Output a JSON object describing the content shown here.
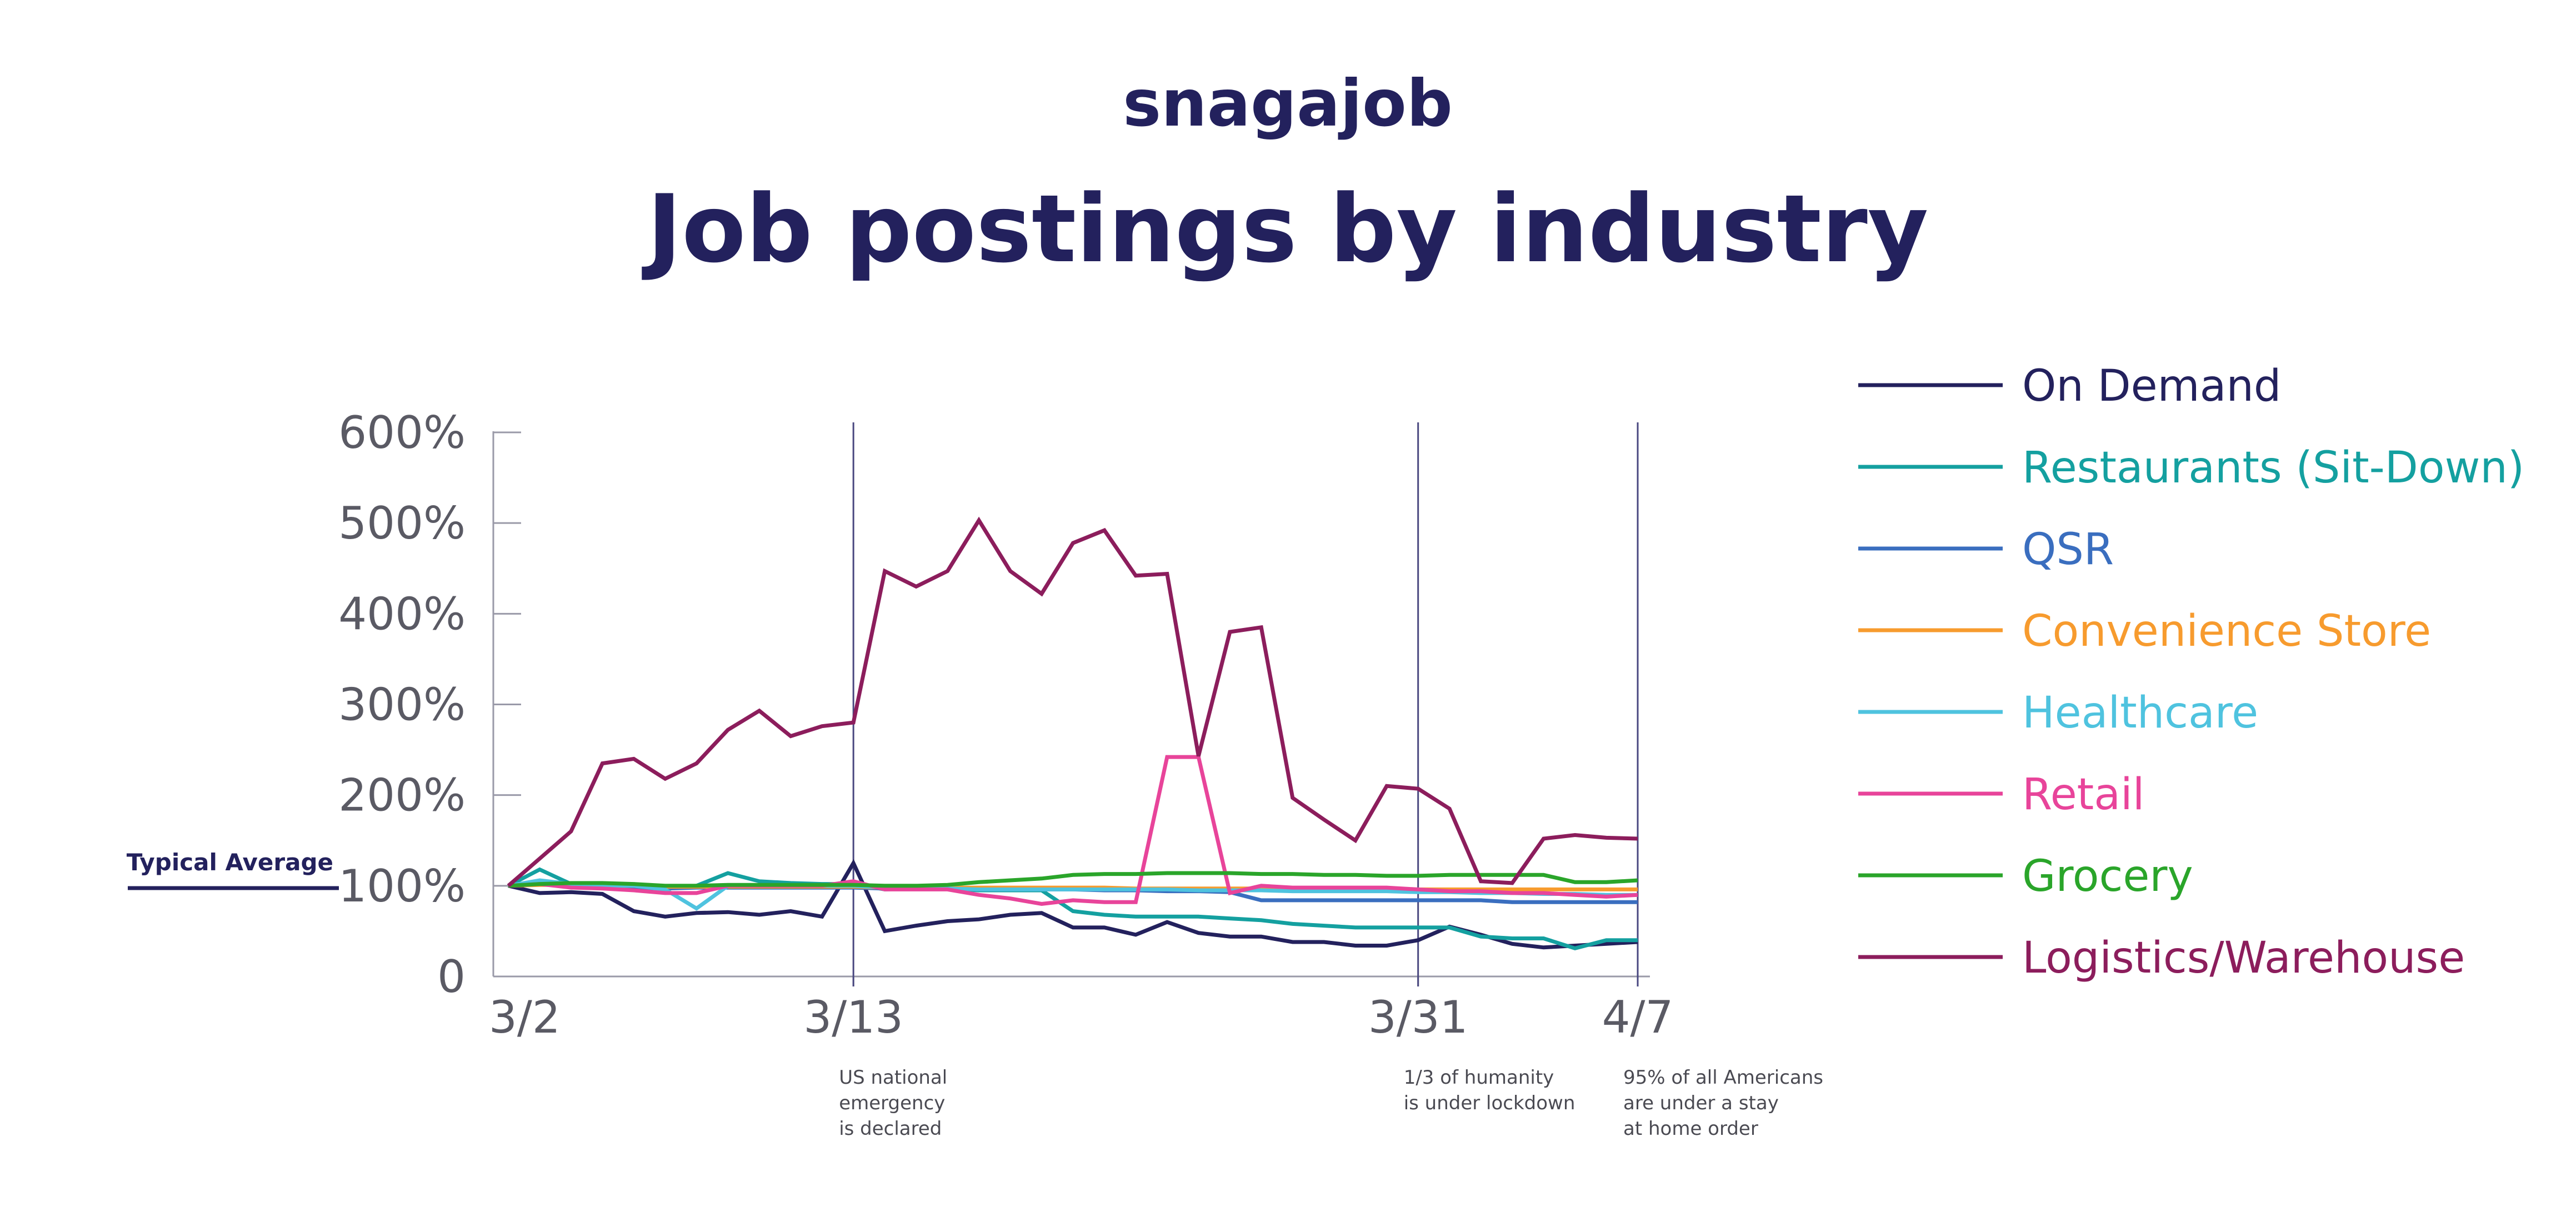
{
  "brand": {
    "name": "snagajob",
    "color": "#23215d"
  },
  "chart_data": {
    "type": "line",
    "title": "Job postings by industry",
    "xlabel": "",
    "ylabel": "",
    "ylim": [
      0,
      600
    ],
    "yticks": [
      {
        "value": 0,
        "label": "0"
      },
      {
        "value": 100,
        "label": "100%"
      },
      {
        "value": 200,
        "label": "200%"
      },
      {
        "value": 300,
        "label": "300%"
      },
      {
        "value": 400,
        "label": "400%"
      },
      {
        "value": 500,
        "label": "500%"
      },
      {
        "value": 600,
        "label": "600%"
      }
    ],
    "x_start_day": 0,
    "x_end_day": 36,
    "xticks": [
      {
        "day": 0,
        "label": "3/2"
      },
      {
        "day": 11,
        "label": "3/13"
      },
      {
        "day": 29,
        "label": "3/31"
      },
      {
        "day": 36,
        "label": "4/7"
      }
    ],
    "reference_line": {
      "value": 100,
      "label": "Typical Average",
      "color": "#23215d"
    },
    "events": [
      {
        "day": 11,
        "lines": [
          "US national",
          "emergency",
          "is declared"
        ]
      },
      {
        "day": 29,
        "lines": [
          "1/3 of humanity",
          "is under lockdown"
        ]
      },
      {
        "day": 36,
        "lines": [
          "95% of all Americans",
          "are under a stay",
          "at home order"
        ]
      }
    ],
    "legend_position": "right",
    "series": [
      {
        "name": "On Demand",
        "color": "#23215d",
        "values": [
          100,
          92,
          93,
          91,
          72,
          66,
          70,
          71,
          68,
          72,
          66,
          125,
          50,
          56,
          61,
          63,
          68,
          70,
          54,
          54,
          46,
          60,
          48,
          44,
          44,
          38,
          38,
          34,
          34,
          40,
          55,
          46,
          36,
          32,
          34,
          36,
          38
        ]
      },
      {
        "name": "Restaurants (Sit-Down)",
        "color": "#14a0a0",
        "values": [
          100,
          118,
          102,
          100,
          100,
          98,
          100,
          114,
          105,
          103,
          102,
          102,
          96,
          97,
          97,
          95,
          95,
          95,
          72,
          68,
          66,
          66,
          66,
          64,
          62,
          58,
          56,
          54,
          54,
          54,
          54,
          44,
          42,
          42,
          31,
          40,
          40
        ]
      },
      {
        "name": "QSR",
        "color": "#3a6ebf",
        "values": [
          100,
          102,
          100,
          99,
          98,
          97,
          98,
          98,
          98,
          98,
          98,
          98,
          97,
          97,
          97,
          96,
          96,
          96,
          96,
          95,
          95,
          94,
          94,
          93,
          84,
          84,
          84,
          84,
          84,
          84,
          84,
          84,
          82,
          82,
          82,
          82,
          82
        ]
      },
      {
        "name": "Convenience Store",
        "color": "#f79b2e",
        "values": [
          100,
          101,
          101,
          100,
          100,
          99,
          99,
          99,
          99,
          99,
          99,
          99,
          98,
          98,
          98,
          98,
          98,
          98,
          98,
          98,
          97,
          97,
          97,
          97,
          97,
          97,
          96,
          96,
          96,
          96,
          96,
          96,
          96,
          96,
          96,
          96,
          96
        ]
      },
      {
        "name": "Healthcare",
        "color": "#4fc3df",
        "values": [
          100,
          106,
          102,
          100,
          100,
          96,
          75,
          100,
          100,
          100,
          100,
          100,
          98,
          97,
          97,
          96,
          96,
          96,
          96,
          96,
          96,
          96,
          95,
          95,
          95,
          94,
          94,
          94,
          94,
          93,
          93,
          92,
          92,
          91,
          91,
          90,
          90
        ]
      },
      {
        "name": "Retail",
        "color": "#e8449a",
        "values": [
          100,
          102,
          98,
          97,
          95,
          92,
          92,
          100,
          100,
          100,
          100,
          105,
          96,
          96,
          96,
          90,
          86,
          80,
          84,
          82,
          82,
          242,
          242,
          92,
          100,
          98,
          98,
          98,
          98,
          96,
          94,
          94,
          92,
          92,
          90,
          88,
          90
        ]
      },
      {
        "name": "Grocery",
        "color": "#2aa52a",
        "values": [
          100,
          102,
          103,
          103,
          102,
          100,
          100,
          101,
          101,
          101,
          101,
          101,
          100,
          100,
          101,
          104,
          106,
          108,
          112,
          113,
          113,
          114,
          114,
          114,
          113,
          113,
          112,
          112,
          111,
          111,
          112,
          112,
          112,
          112,
          104,
          104,
          106
        ]
      },
      {
        "name": "Logistics/Warehouse",
        "color": "#8c1d5c",
        "values": [
          100,
          130,
          160,
          235,
          240,
          218,
          235,
          272,
          293,
          265,
          276,
          280,
          447,
          430,
          447,
          503,
          447,
          422,
          478,
          492,
          442,
          444,
          243,
          380,
          385,
          197,
          173,
          150,
          210,
          207,
          185,
          105,
          103,
          152,
          156,
          153,
          152
        ]
      }
    ]
  }
}
